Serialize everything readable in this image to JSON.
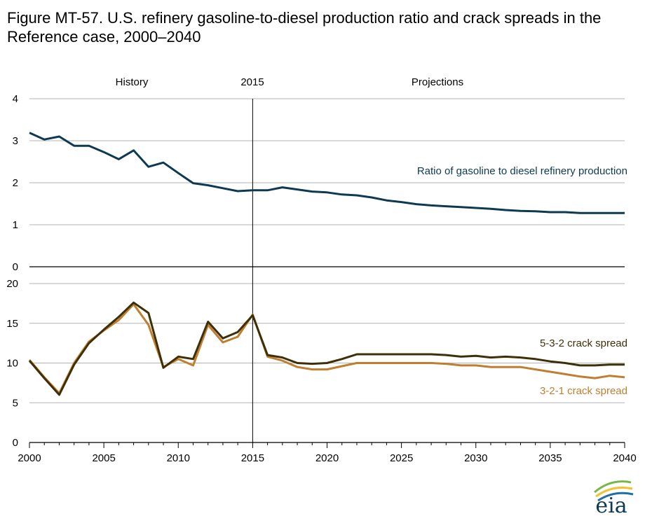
{
  "title": "Figure MT-57. U.S. refinery gasoline-to-diesel production ratio and crack spreads in the Reference case, 2000–2040",
  "logo_text": "eia",
  "chart_data": [
    {
      "type": "line",
      "title": "",
      "section_labels": {
        "history": "History",
        "divider_year": "2015",
        "projections": "Projections"
      },
      "divider_x": 2015,
      "x_range": [
        2000,
        2040
      ],
      "ylim": [
        0,
        4
      ],
      "y_ticks": [
        0,
        1,
        2,
        3,
        4
      ],
      "grid": true,
      "series": [
        {
          "name": "Ratio of gasoline to diesel refinery production",
          "color": "#0d3a52",
          "x": [
            2000,
            2001,
            2002,
            2003,
            2004,
            2005,
            2006,
            2007,
            2008,
            2009,
            2010,
            2011,
            2012,
            2013,
            2014,
            2015,
            2016,
            2017,
            2018,
            2019,
            2020,
            2021,
            2022,
            2023,
            2024,
            2025,
            2026,
            2027,
            2028,
            2029,
            2030,
            2031,
            2032,
            2033,
            2034,
            2035,
            2036,
            2037,
            2038,
            2039,
            2040
          ],
          "values": [
            3.19,
            3.03,
            3.1,
            2.88,
            2.88,
            2.73,
            2.56,
            2.77,
            2.38,
            2.48,
            2.23,
            1.99,
            1.94,
            1.87,
            1.8,
            1.82,
            1.82,
            1.89,
            1.84,
            1.79,
            1.77,
            1.72,
            1.7,
            1.65,
            1.58,
            1.54,
            1.49,
            1.46,
            1.44,
            1.42,
            1.4,
            1.38,
            1.35,
            1.33,
            1.32,
            1.3,
            1.3,
            1.28,
            1.28,
            1.28,
            1.28
          ]
        }
      ]
    },
    {
      "type": "line",
      "title": "",
      "x_range": [
        2000,
        2040
      ],
      "x_ticks": [
        2000,
        2005,
        2010,
        2015,
        2020,
        2025,
        2030,
        2035,
        2040
      ],
      "ylim": [
        0,
        20
      ],
      "y_ticks": [
        0,
        5,
        10,
        15,
        20
      ],
      "grid": true,
      "series": [
        {
          "name": "5-3-2 crack spread",
          "color": "#3d3008",
          "x": [
            2000,
            2001,
            2002,
            2003,
            2004,
            2005,
            2006,
            2007,
            2008,
            2009,
            2010,
            2011,
            2012,
            2013,
            2014,
            2015,
            2016,
            2017,
            2018,
            2019,
            2020,
            2021,
            2022,
            2023,
            2024,
            2025,
            2026,
            2027,
            2028,
            2029,
            2030,
            2031,
            2032,
            2033,
            2034,
            2035,
            2036,
            2037,
            2038,
            2039,
            2040
          ],
          "values": [
            10.3,
            8.1,
            6.0,
            9.8,
            12.5,
            14.2,
            15.8,
            17.6,
            16.3,
            9.4,
            10.8,
            10.5,
            15.2,
            13.1,
            13.9,
            16.0,
            11.0,
            10.7,
            10.0,
            9.9,
            10.0,
            10.5,
            11.1,
            11.1,
            11.1,
            11.1,
            11.1,
            11.1,
            11.0,
            10.8,
            10.9,
            10.7,
            10.8,
            10.7,
            10.5,
            10.2,
            10.0,
            9.7,
            9.7,
            9.8,
            9.8
          ]
        },
        {
          "name": "3-2-1 crack spread",
          "color": "#c07e30",
          "x": [
            2000,
            2001,
            2002,
            2003,
            2004,
            2005,
            2006,
            2007,
            2008,
            2009,
            2010,
            2011,
            2012,
            2013,
            2014,
            2015,
            2016,
            2017,
            2018,
            2019,
            2020,
            2021,
            2022,
            2023,
            2024,
            2025,
            2026,
            2027,
            2028,
            2029,
            2030,
            2031,
            2032,
            2033,
            2034,
            2035,
            2036,
            2037,
            2038,
            2039,
            2040
          ],
          "values": [
            10.4,
            8.2,
            6.2,
            10.0,
            12.7,
            14.1,
            15.4,
            17.4,
            14.8,
            9.5,
            10.5,
            9.7,
            14.8,
            12.6,
            13.3,
            16.1,
            10.8,
            10.3,
            9.5,
            9.2,
            9.2,
            9.6,
            10.0,
            10.0,
            10.0,
            10.0,
            10.0,
            10.0,
            9.9,
            9.7,
            9.7,
            9.5,
            9.5,
            9.5,
            9.2,
            8.9,
            8.6,
            8.3,
            8.1,
            8.4,
            8.2
          ]
        }
      ]
    }
  ]
}
